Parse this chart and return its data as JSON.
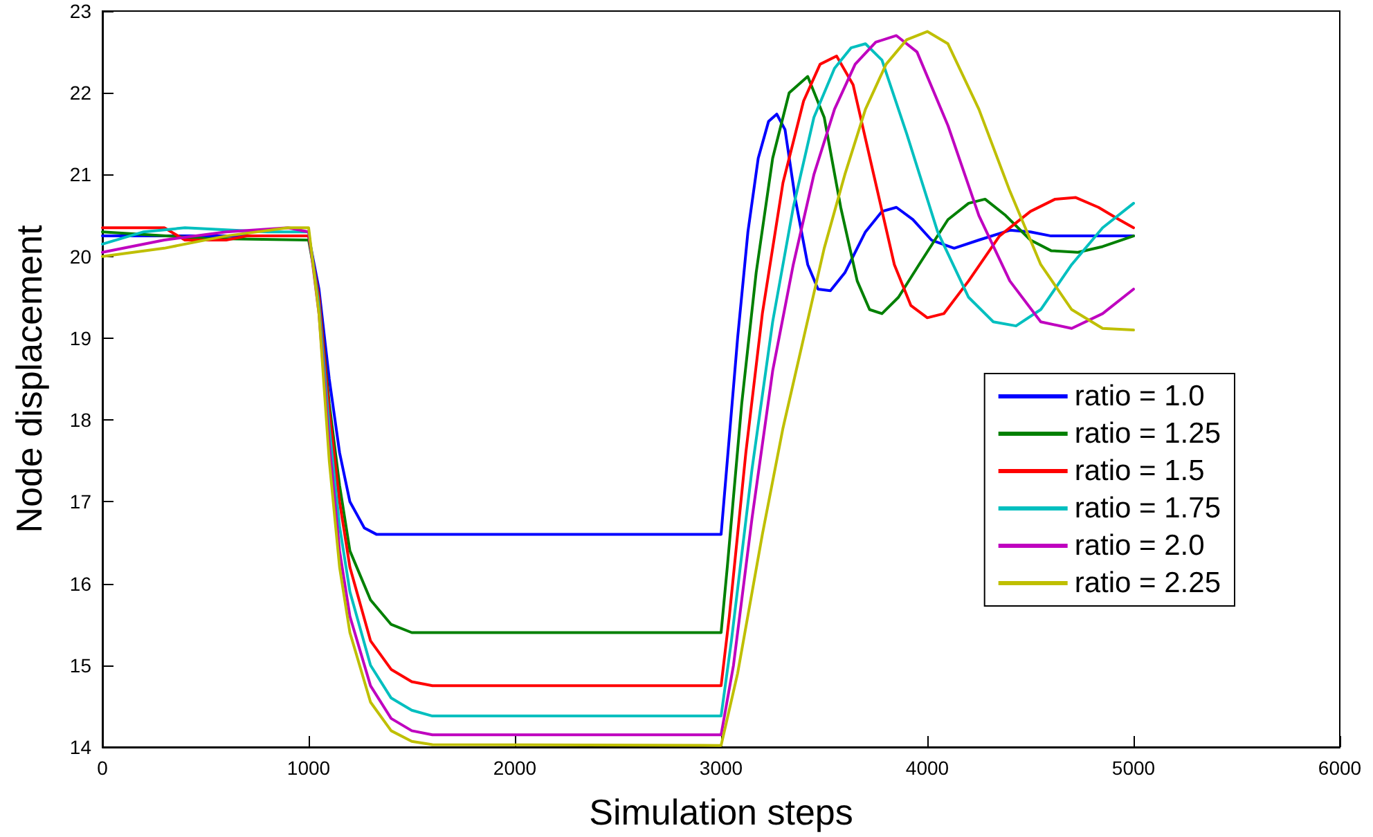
{
  "chart_data": {
    "type": "line",
    "xlabel": "Simulation steps",
    "ylabel": "Node displacement",
    "xlim": [
      0,
      6000
    ],
    "xticks": [
      0,
      1000,
      2000,
      3000,
      4000,
      5000,
      6000
    ],
    "ylim": [
      14,
      23
    ],
    "yticks": [
      14,
      15,
      16,
      17,
      18,
      19,
      20,
      21,
      22,
      23
    ],
    "grid": false,
    "legend": "right",
    "marker": "none",
    "line_style": "solid",
    "series": [
      {
        "name": "ratio = 1.0",
        "color": "#0000ff",
        "x": [
          0,
          1000,
          1050,
          1100,
          1150,
          1200,
          1270,
          1330,
          3000,
          3030,
          3080,
          3130,
          3180,
          3230,
          3270,
          3310,
          3360,
          3420,
          3470,
          3530,
          3600,
          3700,
          3780,
          3850,
          3930,
          4020,
          4130,
          4250,
          4400,
          4500,
          4600,
          5000
        ],
        "values": [
          20.25,
          20.25,
          19.6,
          18.5,
          17.6,
          17.0,
          16.68,
          16.6,
          16.6,
          17.5,
          19.0,
          20.3,
          21.2,
          21.65,
          21.74,
          21.55,
          20.7,
          19.9,
          19.6,
          19.58,
          19.8,
          20.3,
          20.55,
          20.6,
          20.45,
          20.2,
          20.1,
          20.2,
          20.32,
          20.3,
          20.25,
          20.25
        ]
      },
      {
        "name": "ratio = 1.25",
        "color": "#008000",
        "x": [
          0,
          500,
          1000,
          1050,
          1100,
          1150,
          1200,
          1300,
          1400,
          1500,
          3000,
          3030,
          3100,
          3170,
          3250,
          3330,
          3420,
          3500,
          3580,
          3660,
          3720,
          3780,
          3860,
          3960,
          4100,
          4200,
          4280,
          4380,
          4500,
          4600,
          4730,
          4850,
          5000
        ],
        "values": [
          20.3,
          20.22,
          20.2,
          19.5,
          18.2,
          17.2,
          16.4,
          15.8,
          15.5,
          15.4,
          15.4,
          16.2,
          18.2,
          19.8,
          21.2,
          22.0,
          22.2,
          21.7,
          20.6,
          19.7,
          19.35,
          19.3,
          19.5,
          19.9,
          20.45,
          20.65,
          20.7,
          20.5,
          20.2,
          20.07,
          20.05,
          20.12,
          20.25
        ]
      },
      {
        "name": "ratio = 1.5",
        "color": "#ff0000",
        "x": [
          0,
          300,
          400,
          600,
          700,
          1000,
          1050,
          1100,
          1150,
          1200,
          1300,
          1400,
          1500,
          1600,
          3000,
          3040,
          3120,
          3200,
          3300,
          3400,
          3480,
          3560,
          3640,
          3740,
          3840,
          3920,
          4000,
          4080,
          4200,
          4350,
          4500,
          4620,
          4720,
          4830,
          4930,
          5000
        ],
        "values": [
          20.35,
          20.35,
          20.2,
          20.2,
          20.25,
          20.25,
          19.5,
          18.1,
          17.0,
          16.2,
          15.3,
          14.95,
          14.8,
          14.75,
          14.75,
          15.6,
          17.6,
          19.3,
          20.9,
          21.9,
          22.35,
          22.45,
          22.1,
          21.0,
          19.9,
          19.4,
          19.25,
          19.3,
          19.7,
          20.25,
          20.55,
          20.7,
          20.72,
          20.6,
          20.45,
          20.35
        ]
      },
      {
        "name": "ratio = 1.75",
        "color": "#00bfbf",
        "x": [
          0,
          200,
          400,
          800,
          1000,
          1050,
          1100,
          1150,
          1200,
          1300,
          1400,
          1500,
          1600,
          3000,
          3050,
          3150,
          3250,
          3350,
          3450,
          3550,
          3630,
          3700,
          3780,
          3900,
          4050,
          4200,
          4320,
          4430,
          4550,
          4700,
          4850,
          5000
        ],
        "values": [
          20.15,
          20.3,
          20.35,
          20.3,
          20.3,
          19.4,
          17.9,
          16.7,
          15.9,
          15.0,
          14.6,
          14.45,
          14.38,
          14.38,
          15.3,
          17.4,
          19.2,
          20.6,
          21.7,
          22.3,
          22.55,
          22.6,
          22.4,
          21.5,
          20.3,
          19.5,
          19.2,
          19.15,
          19.35,
          19.9,
          20.35,
          20.65
        ]
      },
      {
        "name": "ratio = 2.0",
        "color": "#bf00bf",
        "x": [
          0,
          300,
          600,
          900,
          1000,
          1050,
          1100,
          1150,
          1200,
          1300,
          1400,
          1500,
          1600,
          3000,
          3060,
          3150,
          3250,
          3350,
          3450,
          3550,
          3650,
          3750,
          3850,
          3950,
          4100,
          4250,
          4400,
          4550,
          4700,
          4850,
          5000
        ],
        "values": [
          20.05,
          20.2,
          20.3,
          20.35,
          20.3,
          19.3,
          17.7,
          16.4,
          15.6,
          14.75,
          14.35,
          14.2,
          14.15,
          14.15,
          15.0,
          16.8,
          18.6,
          19.9,
          21.0,
          21.8,
          22.35,
          22.62,
          22.7,
          22.5,
          21.6,
          20.5,
          19.7,
          19.2,
          19.12,
          19.3,
          19.6
        ]
      },
      {
        "name": "ratio = 2.25",
        "color": "#bfbf00",
        "x": [
          0,
          300,
          600,
          900,
          1000,
          1050,
          1100,
          1150,
          1200,
          1300,
          1400,
          1500,
          1600,
          3000,
          3080,
          3200,
          3300,
          3400,
          3500,
          3600,
          3700,
          3800,
          3900,
          4000,
          4100,
          4250,
          4400,
          4550,
          4700,
          4850,
          5000
        ],
        "values": [
          20.0,
          20.1,
          20.25,
          20.35,
          20.35,
          19.3,
          17.5,
          16.2,
          15.4,
          14.55,
          14.2,
          14.07,
          14.03,
          14.02,
          14.9,
          16.6,
          17.9,
          19.0,
          20.1,
          21.0,
          21.8,
          22.35,
          22.65,
          22.75,
          22.6,
          21.8,
          20.8,
          19.9,
          19.35,
          19.12,
          19.1
        ]
      }
    ]
  }
}
